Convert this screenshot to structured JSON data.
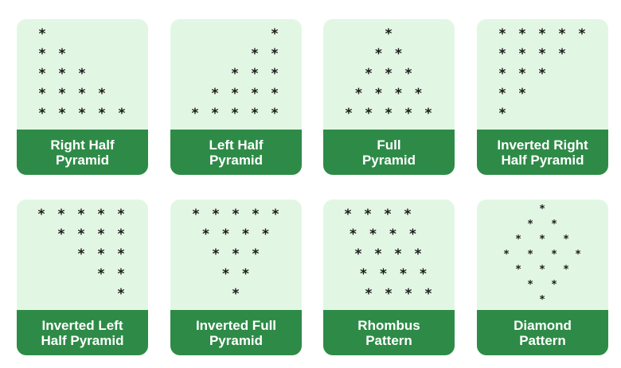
{
  "symbol": "*",
  "cards": [
    {
      "id": "right-half-pyramid",
      "line1": "Right Half",
      "line2": "Pyramid"
    },
    {
      "id": "left-half-pyramid",
      "line1": "Left Half",
      "line2": "Pyramid"
    },
    {
      "id": "full-pyramid",
      "line1": "Full",
      "line2": "Pyramid"
    },
    {
      "id": "inverted-right-half-pyramid",
      "line1": "Inverted Right",
      "line2": "Half Pyramid"
    },
    {
      "id": "inverted-left-half-pyramid",
      "line1": "Inverted Left",
      "line2": "Half Pyramid"
    },
    {
      "id": "inverted-full-pyramid",
      "line1": "Inverted Full",
      "line2": "Pyramid"
    },
    {
      "id": "rhombus-pattern",
      "line1": "Rhombus",
      "line2": "Pattern"
    },
    {
      "id": "diamond-pattern",
      "line1": "Diamond",
      "line2": "Pattern"
    }
  ],
  "colors": {
    "card_bg": "#e2f7e3",
    "label_bg": "#2e8b47",
    "label_text": "#ffffff",
    "star": "#1b1b1b"
  }
}
